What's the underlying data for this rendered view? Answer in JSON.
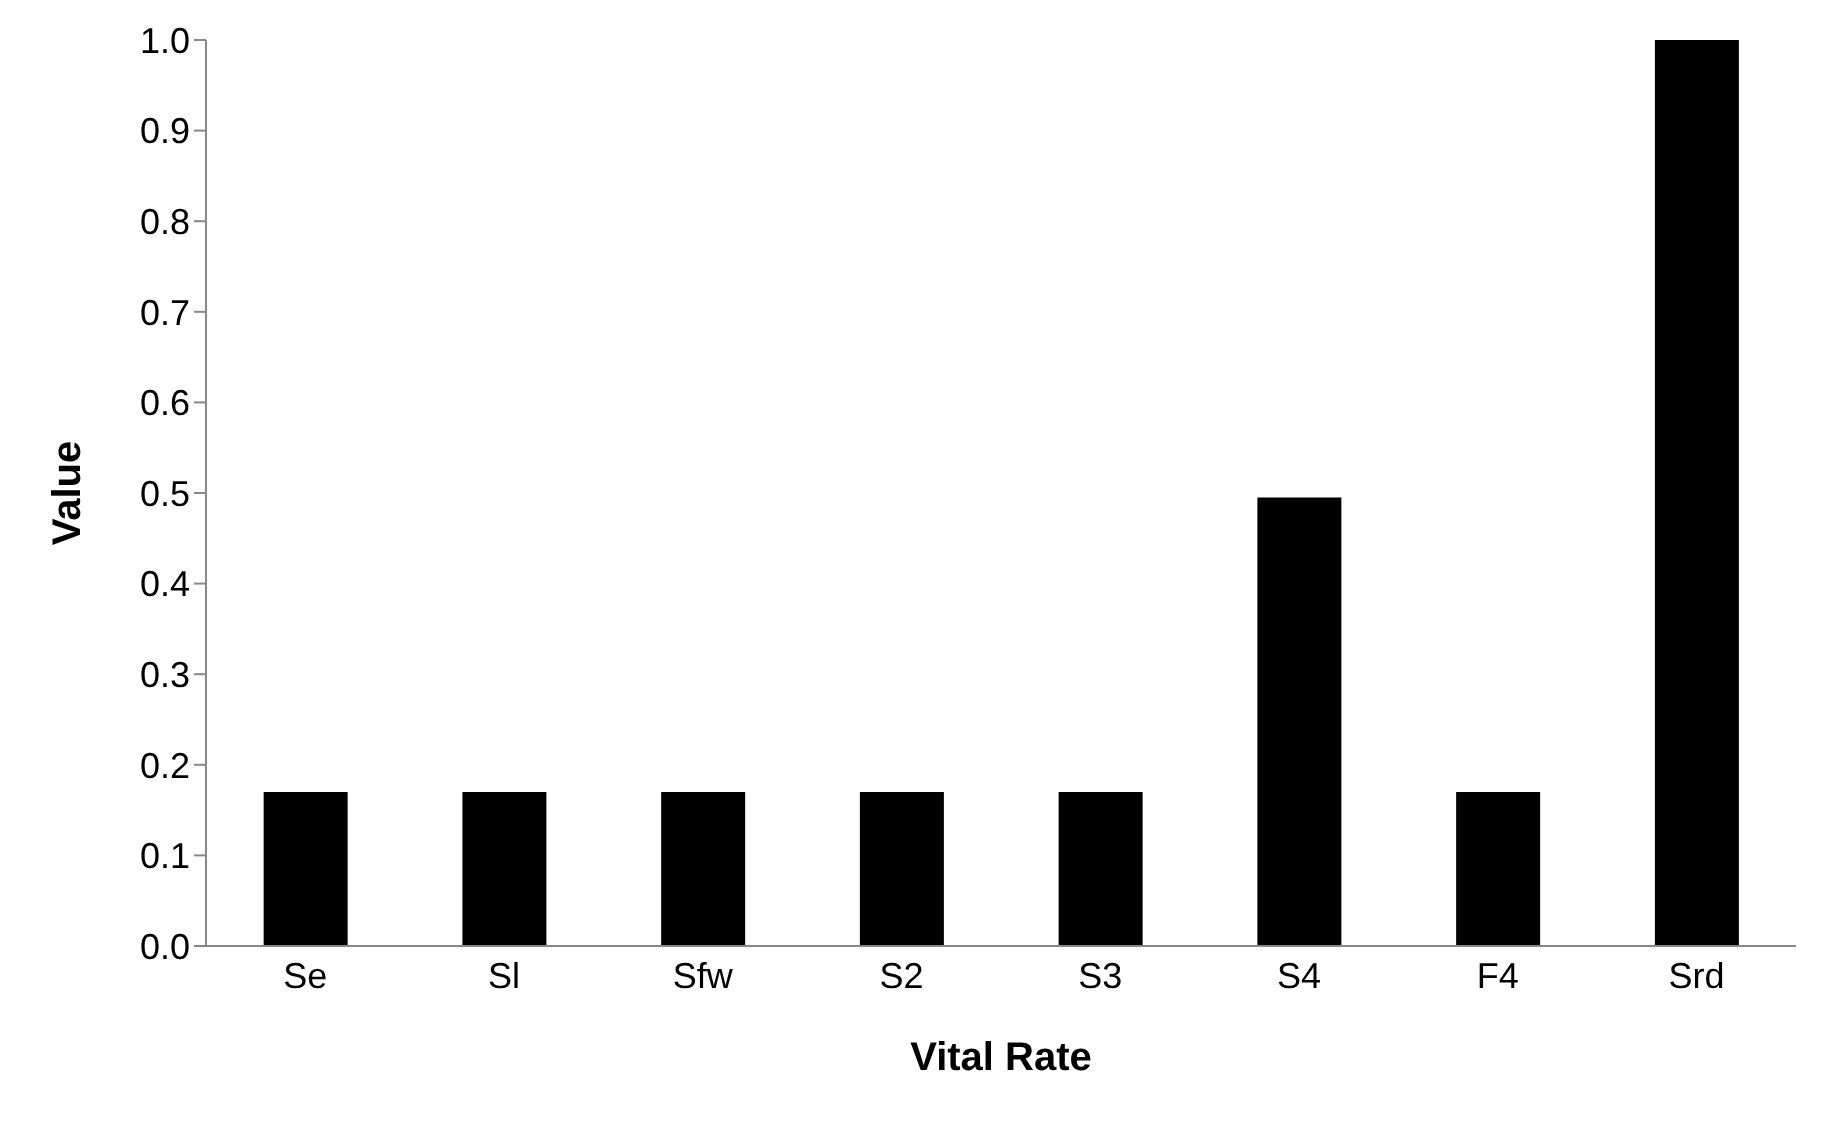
{
  "chart_data": {
    "type": "bar",
    "xlabel": "Vital Rate",
    "ylabel": "Value",
    "categories": [
      "Se",
      "Sl",
      "Sfw",
      "S2",
      "S3",
      "S4",
      "F4",
      "Srd"
    ],
    "values": [
      0.17,
      0.17,
      0.17,
      0.17,
      0.17,
      0.495,
      0.17,
      1.0
    ],
    "color": "#000000",
    "ylim": [
      0,
      1
    ],
    "yticks": [
      {
        "value": 0,
        "label": "0.0"
      },
      0.1,
      0.2,
      0.3,
      0.4,
      0.5,
      0.6,
      0.7,
      0.8,
      0.9,
      {
        "value": 1,
        "label": "1.0"
      }
    ],
    "grid": false,
    "legend": false
  }
}
